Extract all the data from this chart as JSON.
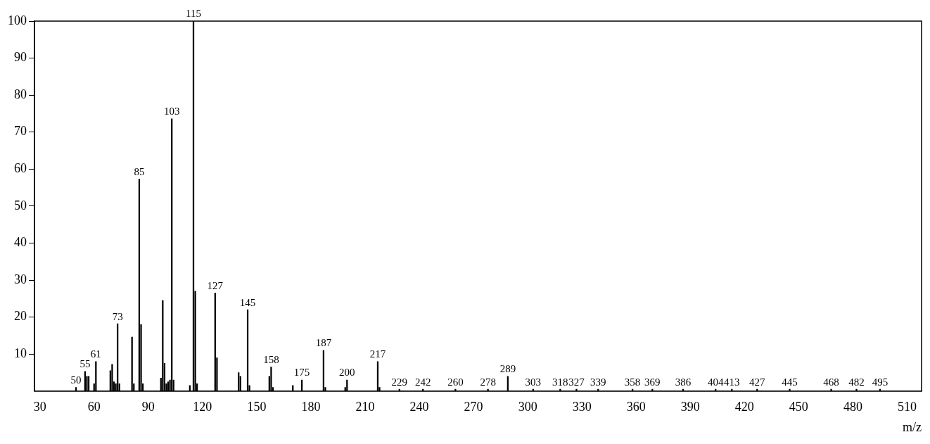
{
  "chart_data": {
    "type": "bar",
    "xlabel": "m/z",
    "x": [
      50,
      55,
      56,
      57,
      60,
      61,
      69,
      70,
      71,
      72,
      73,
      74,
      81,
      82,
      85,
      86,
      87,
      97,
      98,
      99,
      100,
      101,
      102,
      103,
      104,
      113,
      115,
      116,
      117,
      127,
      128,
      140,
      141,
      145,
      146,
      157,
      158,
      159,
      170,
      175,
      187,
      188,
      199,
      200,
      217,
      218,
      229,
      242,
      260,
      278,
      289,
      303,
      318,
      327,
      339,
      358,
      369,
      386,
      404,
      413,
      427,
      445,
      468,
      482,
      495
    ],
    "values": [
      1,
      5.3,
      4,
      4,
      2,
      8,
      5.5,
      7.2,
      2.5,
      2,
      18.2,
      2,
      14.6,
      2,
      57.3,
      18,
      2,
      3.5,
      24.5,
      7.5,
      2,
      2.5,
      3,
      73.6,
      3,
      1.5,
      100,
      27,
      2,
      26.5,
      9,
      5,
      4,
      22,
      1.5,
      4,
      6.5,
      1,
      1.5,
      3,
      11,
      1,
      1,
      3,
      8,
      1,
      0.5,
      0.5,
      0.5,
      0.5,
      4,
      0.5,
      0.5,
      0.5,
      0.5,
      0.5,
      0.5,
      0.5,
      0.5,
      0.5,
      0.5,
      0.5,
      0.5,
      0.5,
      0.5
    ],
    "annotations": [
      {
        "text": "50",
        "x": 50,
        "y": 1
      },
      {
        "text": "55",
        "x": 55,
        "y": 5.3
      },
      {
        "text": "61",
        "x": 61,
        "y": 8
      },
      {
        "text": "73",
        "x": 73,
        "y": 18.2
      },
      {
        "text": "85",
        "x": 85,
        "y": 57.3
      },
      {
        "text": "103",
        "x": 103,
        "y": 73.6
      },
      {
        "text": "115",
        "x": 115,
        "y": 100
      },
      {
        "text": "127",
        "x": 127,
        "y": 26.5
      },
      {
        "text": "145",
        "x": 145,
        "y": 22
      },
      {
        "text": "158",
        "x": 158,
        "y": 6.5
      },
      {
        "text": "175",
        "x": 175,
        "y": 3
      },
      {
        "text": "187",
        "x": 187,
        "y": 11
      },
      {
        "text": "200",
        "x": 200,
        "y": 3
      },
      {
        "text": "217",
        "x": 217,
        "y": 8
      },
      {
        "text": "229",
        "x": 229,
        "y": 0.5
      },
      {
        "text": "242",
        "x": 242,
        "y": 0.5
      },
      {
        "text": "260",
        "x": 260,
        "y": 0.5
      },
      {
        "text": "278",
        "x": 278,
        "y": 0.5
      },
      {
        "text": "289",
        "x": 289,
        "y": 4
      },
      {
        "text": "303",
        "x": 303,
        "y": 0.5
      },
      {
        "text": "318",
        "x": 318,
        "y": 0.5
      },
      {
        "text": "327",
        "x": 327,
        "y": 0.5
      },
      {
        "text": "339",
        "x": 339,
        "y": 0.5
      },
      {
        "text": "358",
        "x": 358,
        "y": 0.5
      },
      {
        "text": "369",
        "x": 369,
        "y": 0.5
      },
      {
        "text": "386",
        "x": 386,
        "y": 0.5
      },
      {
        "text": "404",
        "x": 404,
        "y": 0.5
      },
      {
        "text": "413",
        "x": 413,
        "y": 0.5
      },
      {
        "text": "427",
        "x": 427,
        "y": 0.5
      },
      {
        "text": "445",
        "x": 445,
        "y": 0.5
      },
      {
        "text": "468",
        "x": 468,
        "y": 0.5
      },
      {
        "text": "482",
        "x": 482,
        "y": 0.5
      },
      {
        "text": "495",
        "x": 495,
        "y": 0.5
      }
    ],
    "color": "#000000",
    "xlim": [
      27,
      518
    ],
    "xticks": [
      30,
      60,
      90,
      120,
      150,
      180,
      210,
      240,
      270,
      300,
      330,
      360,
      390,
      420,
      450,
      480,
      510
    ],
    "ylim": [
      0,
      100
    ],
    "yticks": [
      10,
      20,
      30,
      40,
      50,
      60,
      70,
      80,
      90,
      100
    ],
    "grid": false,
    "legend": false
  }
}
